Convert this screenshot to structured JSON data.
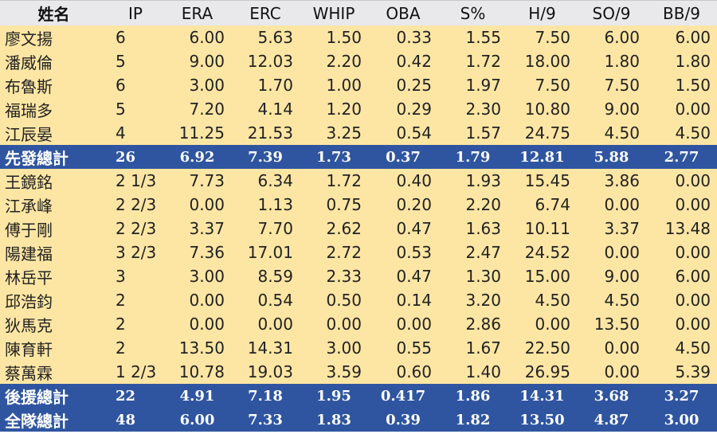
{
  "headers": [
    "姓名",
    "IP",
    "ERA",
    "ERC",
    "WHIP",
    "OBA",
    "S%",
    "H/9",
    "SO/9",
    "BB/9"
  ],
  "rows": [
    {
      "type": "data",
      "cells": [
        "廖文揚",
        "6",
        "6.00",
        "5.63",
        "1.50",
        "0.33",
        "1.55",
        "7.50",
        "6.00",
        "6.00"
      ]
    },
    {
      "type": "data",
      "cells": [
        "潘威倫",
        "5",
        "9.00",
        "12.03",
        "2.20",
        "0.42",
        "1.72",
        "18.00",
        "1.80",
        "1.80"
      ]
    },
    {
      "type": "data",
      "cells": [
        "布魯斯",
        "6",
        "3.00",
        "1.70",
        "1.00",
        "0.25",
        "1.97",
        "7.50",
        "7.50",
        "1.50"
      ]
    },
    {
      "type": "data",
      "cells": [
        "福瑞多",
        "5",
        "7.20",
        "4.14",
        "1.20",
        "0.29",
        "2.30",
        "10.80",
        "9.00",
        "0.00"
      ]
    },
    {
      "type": "data",
      "cells": [
        "江辰晏",
        "4",
        "11.25",
        "21.53",
        "3.25",
        "0.54",
        "1.57",
        "24.75",
        "4.50",
        "4.50"
      ]
    },
    {
      "type": "total",
      "cells": [
        "先發總計",
        "26",
        "6.92",
        "7.39",
        "1.73",
        "0.37",
        "1.79",
        "12.81",
        "5.88",
        "2.77"
      ]
    },
    {
      "type": "data",
      "cells": [
        "王鏡銘",
        "2 1/3",
        "7.73",
        "6.34",
        "1.72",
        "0.40",
        "1.93",
        "15.45",
        "3.86",
        "0.00"
      ]
    },
    {
      "type": "data",
      "cells": [
        "江承峰",
        "2 2/3",
        "0.00",
        "1.13",
        "0.75",
        "0.20",
        "2.20",
        "6.74",
        "0.00",
        "0.00"
      ]
    },
    {
      "type": "data",
      "cells": [
        "傅于剛",
        "2 2/3",
        "3.37",
        "7.70",
        "2.62",
        "0.47",
        "1.63",
        "10.11",
        "3.37",
        "13.48"
      ]
    },
    {
      "type": "data",
      "cells": [
        "陽建福",
        "3 2/3",
        "7.36",
        "17.01",
        "2.72",
        "0.53",
        "2.47",
        "24.52",
        "0.00",
        "0.00"
      ]
    },
    {
      "type": "data",
      "cells": [
        "林岳平",
        "3",
        "3.00",
        "8.59",
        "2.33",
        "0.47",
        "1.30",
        "15.00",
        "9.00",
        "6.00"
      ]
    },
    {
      "type": "data",
      "cells": [
        "邱浩鈞",
        "2",
        "0.00",
        "0.54",
        "0.50",
        "0.14",
        "3.20",
        "4.50",
        "4.50",
        "0.00"
      ]
    },
    {
      "type": "data",
      "cells": [
        "狄馬克",
        "2",
        "0.00",
        "0.00",
        "0.00",
        "0.00",
        "2.86",
        "0.00",
        "13.50",
        "0.00"
      ]
    },
    {
      "type": "data",
      "cells": [
        "陳育軒",
        "2",
        "13.50",
        "14.31",
        "3.00",
        "0.55",
        "1.67",
        "22.50",
        "0.00",
        "4.50"
      ]
    },
    {
      "type": "data",
      "cells": [
        "蔡萬霖",
        "1 2/3",
        "10.78",
        "19.03",
        "3.59",
        "0.60",
        "1.40",
        "26.95",
        "0.00",
        "5.39"
      ]
    },
    {
      "type": "total",
      "cells": [
        "後援總計",
        "22",
        "4.91",
        "7.18",
        "1.95",
        "0.417",
        "1.86",
        "14.31",
        "3.68",
        "3.27"
      ]
    },
    {
      "type": "total",
      "cells": [
        "全隊總計",
        "48",
        "6.00",
        "7.33",
        "1.83",
        "0.39",
        "1.82",
        "13.50",
        "4.87",
        "3.00"
      ]
    }
  ],
  "colors": {
    "header_bg": "#e9e9ec",
    "row_bg": "#fde6a4",
    "total_bg": "#2f55a0"
  }
}
